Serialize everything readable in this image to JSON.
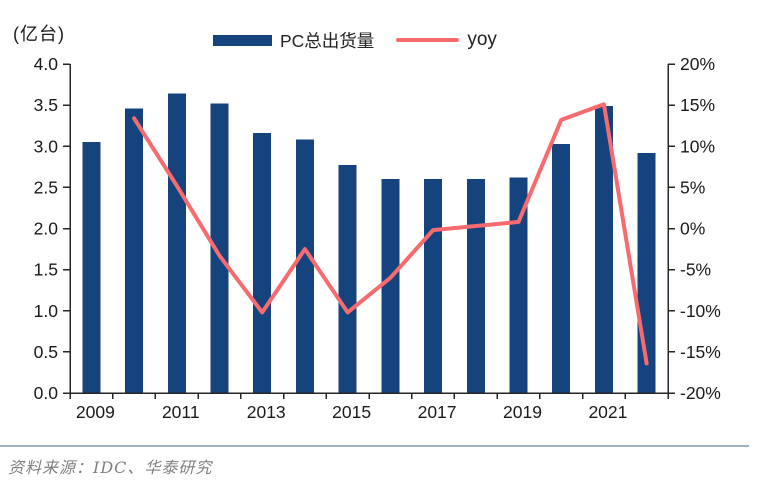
{
  "chart_data": {
    "type": "bar+line combo",
    "unit_label": "(亿台)",
    "categories": [
      "2009",
      "2010",
      "2011",
      "2012",
      "2013",
      "2014",
      "2015",
      "2016",
      "2017",
      "2018",
      "2019",
      "2020",
      "2021",
      "2022"
    ],
    "x_tick_labels": [
      "2009",
      "2011",
      "2013",
      "2015",
      "2017",
      "2019",
      "2021"
    ],
    "series": [
      {
        "name": "PC总出货量",
        "type": "bar",
        "axis": "left",
        "color": "#15437E",
        "values": [
          3.05,
          3.46,
          3.64,
          3.52,
          3.16,
          3.08,
          2.77,
          2.6,
          2.6,
          2.6,
          2.62,
          3.03,
          3.49,
          2.92
        ]
      },
      {
        "name": "yoy",
        "type": "line",
        "axis": "right",
        "color": "#F76B6E",
        "values": [
          null,
          13.4,
          5.2,
          -3.3,
          -10.2,
          -2.5,
          -10.2,
          -6.0,
          -0.2,
          0.3,
          0.8,
          13.2,
          15.1,
          -16.4
        ]
      }
    ],
    "left_axis": {
      "min": 0.0,
      "max": 4.0,
      "step": 0.5,
      "ticks": [
        "4.0",
        "3.5",
        "3.0",
        "2.5",
        "2.0",
        "1.5",
        "1.0",
        "0.5",
        "0.0"
      ]
    },
    "right_axis": {
      "min": -20,
      "max": 20,
      "step": 5,
      "ticks": [
        "20%",
        "15%",
        "10%",
        "5%",
        "0%",
        "-5%",
        "-10%",
        "-15%",
        "-20%"
      ]
    },
    "grid": "off",
    "legend_position": "top-center",
    "axis_color": "#262626",
    "tick_label_color": "#1a1a1a"
  },
  "footer": {
    "source": "资料来源：IDC、华泰研究",
    "divider_color": "#9DB0C6",
    "source_text_color": "#808080"
  }
}
